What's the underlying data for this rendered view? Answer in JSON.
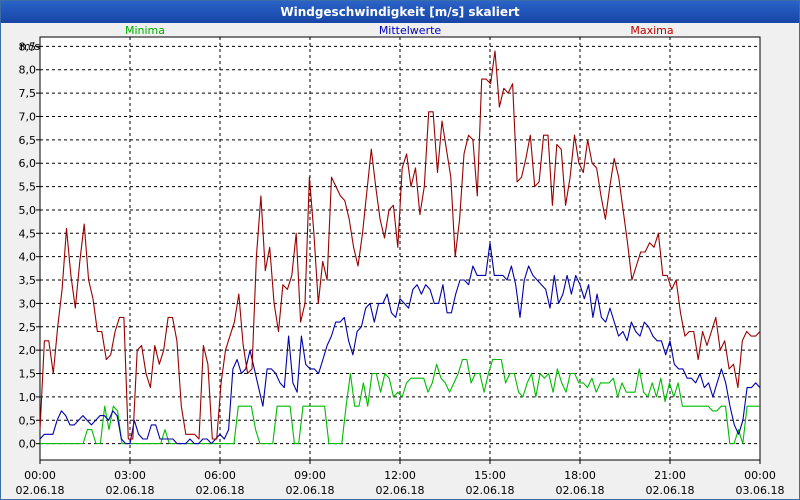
{
  "window": {
    "title": "Windgeschwindigkeit [m/s] skaliert"
  },
  "chart_data": {
    "type": "line",
    "title": "Windgeschwindigkeit [m/s] skaliert",
    "ylabel": "m/s",
    "ylim": [
      -0.35,
      8.7
    ],
    "xlim": [
      0,
      24
    ],
    "yticks": [
      "0,0",
      "0,5",
      "1,0",
      "1,5",
      "2,0",
      "2,5",
      "3,0",
      "3,5",
      "4,0",
      "4,5",
      "5,0",
      "5,5",
      "6,0",
      "6,5",
      "7,0",
      "7,5",
      "8,0",
      "8,5"
    ],
    "xticks": [
      {
        "time": "00:00",
        "date": "02.06.18"
      },
      {
        "time": "03:00",
        "date": "02.06.18"
      },
      {
        "time": "06:00",
        "date": "02.06.18"
      },
      {
        "time": "09:00",
        "date": "02.06.18"
      },
      {
        "time": "12:00",
        "date": "02.06.18"
      },
      {
        "time": "15:00",
        "date": "02.06.18"
      },
      {
        "time": "18:00",
        "date": "02.06.18"
      },
      {
        "time": "21:00",
        "date": "02.06.18"
      },
      {
        "time": "00:00",
        "date": "03.06.18"
      }
    ],
    "legend": [
      {
        "name": "Minima",
        "color": "#00b000",
        "position": "top-left"
      },
      {
        "name": "Mittelwerte",
        "color": "#0000c0",
        "position": "top-center"
      },
      {
        "name": "Maxima",
        "color": "#c00000",
        "position": "top-right"
      }
    ],
    "series": [
      {
        "name": "Maxima",
        "color": "#990000",
        "values": [
          0.3,
          2.2,
          2.2,
          1.5,
          2.5,
          3.3,
          4.6,
          3.6,
          2.9,
          3.9,
          4.7,
          3.5,
          3.1,
          2.4,
          2.4,
          1.8,
          1.9,
          2.4,
          2.7,
          2.7,
          0.1,
          0.1,
          2.0,
          2.1,
          1.5,
          1.2,
          2.1,
          1.7,
          2.0,
          2.7,
          2.7,
          2.2,
          0.8,
          0.2,
          0.2,
          0.2,
          0.1,
          2.1,
          1.7,
          0.1,
          0.1,
          1.3,
          2.0,
          2.3,
          2.6,
          3.2,
          2.1,
          1.5,
          1.6,
          4.0,
          5.3,
          3.7,
          4.2,
          3.0,
          2.4,
          3.4,
          3.3,
          3.6,
          4.5,
          2.6,
          3.0,
          5.7,
          4.5,
          3.0,
          3.9,
          3.5,
          5.7,
          5.5,
          5.3,
          5.2,
          4.8,
          4.2,
          3.8,
          4.5,
          5.4,
          6.3,
          5.5,
          4.8,
          4.4,
          5.0,
          5.1,
          4.2,
          5.9,
          6.2,
          5.5,
          5.9,
          4.9,
          5.5,
          7.1,
          7.1,
          5.8,
          6.9,
          6.3,
          5.7,
          4.0,
          4.8,
          6.2,
          6.6,
          6.5,
          5.3,
          7.8,
          7.8,
          7.7,
          8.4,
          7.2,
          7.6,
          7.5,
          7.7,
          5.6,
          5.7,
          6.1,
          6.6,
          5.5,
          5.6,
          6.6,
          6.6,
          5.1,
          6.4,
          6.3,
          5.1,
          5.7,
          6.6,
          6.0,
          5.8,
          6.5,
          6.0,
          5.9,
          5.3,
          4.8,
          5.5,
          6.1,
          5.7,
          5.0,
          4.3,
          3.5,
          3.8,
          4.1,
          4.1,
          4.3,
          4.2,
          4.5,
          3.6,
          3.6,
          3.3,
          3.5,
          2.8,
          2.3,
          2.4,
          2.4,
          1.8,
          2.4,
          2.1,
          2.4,
          2.7,
          2.0,
          2.2,
          1.6,
          1.7,
          1.2,
          2.2,
          2.4,
          2.3,
          2.3,
          2.4
        ]
      },
      {
        "name": "Mittelwerte",
        "color": "#0000aa",
        "values": [
          0.1,
          0.2,
          0.2,
          0.2,
          0.5,
          0.7,
          0.6,
          0.4,
          0.4,
          0.5,
          0.6,
          0.5,
          0.4,
          0.5,
          0.6,
          0.6,
          0.5,
          0.7,
          0.6,
          0.1,
          0.0,
          0.0,
          0.5,
          0.2,
          0.1,
          0.1,
          0.4,
          0.4,
          0.1,
          0.1,
          0.1,
          0.1,
          0.0,
          0.0,
          0.0,
          0.1,
          0.0,
          0.0,
          0.1,
          0.1,
          0.0,
          0.1,
          0.2,
          0.1,
          0.3,
          1.6,
          1.8,
          1.5,
          1.6,
          2.0,
          1.6,
          1.2,
          0.8,
          1.6,
          1.6,
          1.5,
          1.3,
          1.2,
          2.3,
          1.3,
          1.1,
          2.3,
          1.7,
          1.6,
          1.6,
          1.5,
          1.8,
          2.1,
          2.3,
          2.6,
          2.6,
          2.7,
          2.2,
          1.9,
          2.4,
          2.5,
          2.9,
          3.0,
          2.6,
          3.0,
          3.0,
          3.2,
          2.8,
          2.7,
          3.1,
          3.0,
          2.9,
          3.3,
          3.4,
          3.2,
          3.4,
          3.3,
          3.0,
          3.0,
          3.4,
          2.8,
          2.8,
          3.2,
          3.5,
          3.5,
          3.4,
          3.8,
          3.6,
          3.6,
          3.6,
          4.3,
          3.6,
          3.6,
          3.6,
          3.5,
          3.8,
          3.4,
          2.7,
          3.5,
          3.8,
          3.6,
          3.5,
          3.4,
          3.3,
          2.9,
          3.6,
          3.0,
          3.2,
          3.6,
          3.2,
          3.6,
          3.4,
          3.1,
          3.4,
          2.7,
          3.2,
          2.7,
          2.6,
          2.9,
          2.6,
          2.3,
          2.4,
          2.2,
          2.6,
          2.4,
          2.3,
          2.6,
          2.5,
          2.3,
          2.2,
          2.2,
          1.9,
          2.2,
          1.7,
          1.6,
          1.6,
          1.4,
          1.4,
          1.3,
          1.5,
          1.2,
          1.3,
          1.0,
          1.3,
          1.6,
          1.3,
          0.8,
          0.4,
          0.2,
          0.5,
          1.2,
          1.2,
          1.3,
          1.2
        ]
      },
      {
        "name": "Minima",
        "color": "#00bb00",
        "values": [
          0.0,
          0.0,
          0.0,
          0.0,
          0.0,
          0.0,
          0.0,
          0.0,
          0.0,
          0.0,
          0.0,
          0.3,
          0.3,
          0.0,
          0.0,
          0.8,
          0.3,
          0.8,
          0.7,
          0.0,
          0.0,
          0.0,
          0.0,
          0.0,
          0.0,
          0.0,
          0.0,
          0.0,
          0.0,
          0.3,
          0.0,
          0.0,
          0.0,
          0.0,
          0.0,
          0.0,
          0.0,
          0.0,
          0.0,
          0.0,
          0.0,
          0.0,
          0.0,
          0.0,
          0.0,
          0.0,
          0.8,
          0.8,
          0.8,
          0.8,
          0.3,
          0.0,
          0.0,
          0.0,
          0.0,
          0.8,
          0.8,
          0.8,
          0.8,
          0.0,
          0.0,
          0.8,
          0.8,
          0.8,
          0.8,
          0.8,
          0.8,
          0.0,
          0.0,
          0.0,
          0.0,
          0.8,
          1.5,
          0.8,
          0.8,
          1.3,
          0.8,
          1.5,
          1.5,
          1.1,
          1.5,
          1.4,
          1.0,
          1.1,
          1.0,
          1.3,
          1.4,
          1.4,
          1.4,
          1.4,
          1.1,
          1.3,
          1.7,
          1.4,
          1.3,
          1.1,
          1.3,
          1.5,
          1.8,
          1.8,
          1.3,
          1.5,
          1.5,
          1.1,
          1.5,
          1.8,
          1.8,
          1.8,
          1.3,
          1.5,
          1.5,
          1.1,
          1.0,
          1.3,
          1.5,
          1.0,
          1.5,
          1.4,
          1.5,
          1.1,
          1.6,
          1.3,
          1.1,
          1.5,
          1.5,
          1.3,
          1.3,
          1.2,
          1.4,
          1.1,
          1.3,
          1.3,
          1.3,
          1.4,
          1.0,
          1.3,
          1.1,
          1.1,
          1.1,
          1.6,
          1.1,
          1.0,
          1.3,
          1.0,
          1.4,
          0.9,
          1.3,
          1.0,
          1.3,
          0.8,
          0.8,
          0.8,
          0.8,
          0.8,
          0.8,
          0.8,
          0.7,
          0.7,
          0.8,
          0.8,
          0.0,
          0.0,
          0.3,
          0.0,
          0.8,
          0.8,
          0.8,
          0.8
        ]
      }
    ]
  }
}
